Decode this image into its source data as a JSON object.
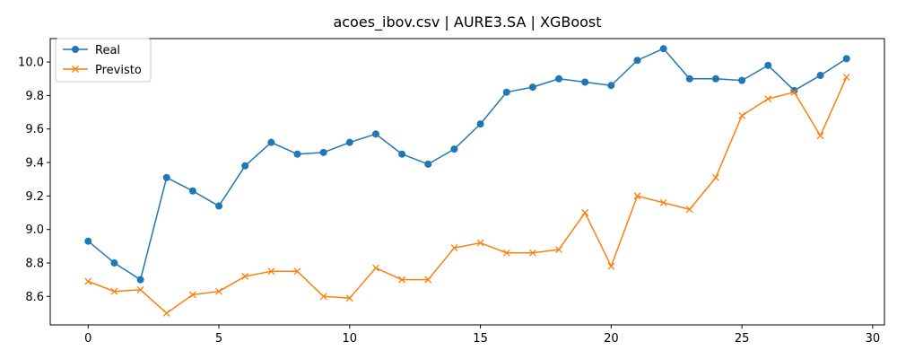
{
  "chart_data": {
    "type": "line",
    "title": "acoes_ibov.csv | AURE3.SA | XGBoost",
    "xlabel": "",
    "ylabel": "",
    "xlim": [
      -1.45,
      30.45
    ],
    "ylim": [
      8.43,
      10.14
    ],
    "xticks": [
      0,
      5,
      10,
      15,
      20,
      25,
      30
    ],
    "yticks": [
      8.6,
      8.8,
      9.0,
      9.2,
      9.4,
      9.6,
      9.8,
      10.0
    ],
    "grid": false,
    "legend_position": "top-left",
    "x": [
      0,
      1,
      2,
      3,
      4,
      5,
      6,
      7,
      8,
      9,
      10,
      11,
      12,
      13,
      14,
      15,
      16,
      17,
      18,
      19,
      20,
      21,
      22,
      23,
      24,
      25,
      26,
      27,
      28,
      29
    ],
    "series": [
      {
        "name": "Real",
        "color": "#1f77b4",
        "marker": "circle",
        "values": [
          8.93,
          8.8,
          8.7,
          9.31,
          9.23,
          9.14,
          9.38,
          9.52,
          9.45,
          9.46,
          9.52,
          9.57,
          9.45,
          9.39,
          9.48,
          9.63,
          9.82,
          9.85,
          9.9,
          9.88,
          9.86,
          10.01,
          10.08,
          9.9,
          9.9,
          9.89,
          9.98,
          9.83,
          9.92,
          10.02
        ]
      },
      {
        "name": "Previsto",
        "color": "#ff7f0e",
        "marker": "x",
        "values": [
          8.69,
          8.63,
          8.64,
          8.5,
          8.61,
          8.63,
          8.72,
          8.75,
          8.75,
          8.6,
          8.59,
          8.77,
          8.7,
          8.7,
          8.89,
          8.92,
          8.86,
          8.86,
          8.88,
          9.1,
          8.78,
          9.2,
          9.16,
          9.12,
          9.31,
          9.68,
          9.78,
          9.82,
          9.56,
          9.91
        ]
      }
    ]
  }
}
